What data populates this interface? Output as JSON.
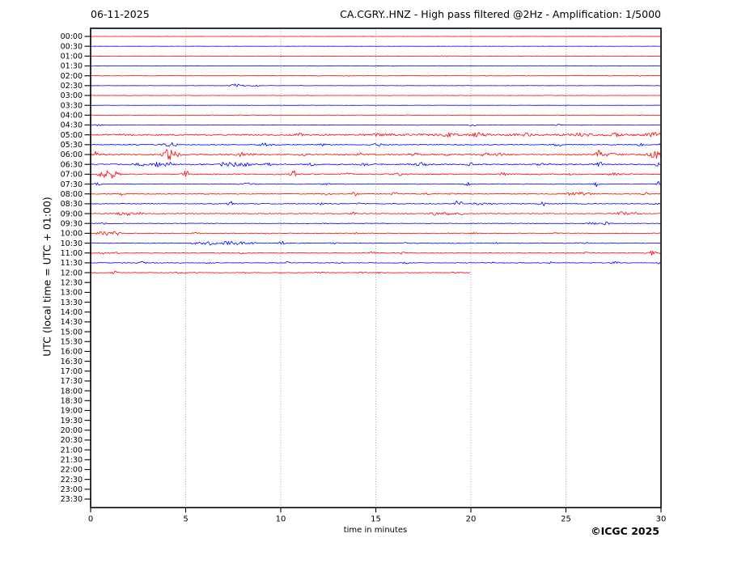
{
  "header": {
    "date": "06-11-2025",
    "title": "CA.CGRY..HNZ - High pass filtered @2Hz - Amplification: 1/5000"
  },
  "footer": {
    "copyright": "©ICGC 2025"
  },
  "chart_data": {
    "type": "line",
    "subtype": "helicorder-day-plot",
    "title": "CA.CGRY..HNZ - High pass filtered @2Hz - Amplification: 1/5000",
    "date": "06-11-2025",
    "xlabel": "time in minutes",
    "ylabel": "UTC (local time = UTC + 01:00)",
    "xlim": [
      0,
      30
    ],
    "x_ticks": [
      0,
      5,
      10,
      15,
      20,
      25,
      30
    ],
    "grid_minutes": [
      5,
      10,
      15,
      20,
      25
    ],
    "grid_on": true,
    "colors": {
      "red": "#ff0000",
      "blue": "#0000ff",
      "grid": "#999999",
      "frame": "#000000"
    },
    "rows": [
      {
        "utc": "00:00",
        "color": "red",
        "extent_min": 30,
        "noise": 0.12,
        "events": []
      },
      {
        "utc": "00:30",
        "color": "blue",
        "extent_min": 30,
        "noise": 0.12,
        "events": []
      },
      {
        "utc": "01:00",
        "color": "red",
        "extent_min": 30,
        "noise": 0.15,
        "events": [
          {
            "t": 18.6,
            "amp": 0.8,
            "w": 0.25
          },
          {
            "t": 19.2,
            "amp": 0.5,
            "w": 0.15
          }
        ]
      },
      {
        "utc": "01:30",
        "color": "blue",
        "extent_min": 30,
        "noise": 0.3,
        "events": []
      },
      {
        "utc": "02:00",
        "color": "red",
        "extent_min": 30,
        "noise": 0.25,
        "events": [
          {
            "t": 13.5,
            "amp": 0.4,
            "w": 0.2
          },
          {
            "t": 21.0,
            "amp": 0.5,
            "w": 0.2
          },
          {
            "t": 29.0,
            "amp": 0.4,
            "w": 0.2
          }
        ]
      },
      {
        "utc": "02:30",
        "color": "blue",
        "extent_min": 30,
        "noise": 0.2,
        "events": [
          {
            "t": 7.7,
            "amp": 2.2,
            "w": 0.35
          },
          {
            "t": 8.7,
            "amp": 2.0,
            "w": 0.18
          }
        ]
      },
      {
        "utc": "03:00",
        "color": "red",
        "extent_min": 30,
        "noise": 0.2,
        "events": []
      },
      {
        "utc": "03:30",
        "color": "blue",
        "extent_min": 30,
        "noise": 0.15,
        "events": []
      },
      {
        "utc": "04:00",
        "color": "red",
        "extent_min": 30,
        "noise": 0.35,
        "events": []
      },
      {
        "utc": "04:30",
        "color": "blue",
        "extent_min": 30,
        "noise": 0.3,
        "events": [
          {
            "t": 0.45,
            "amp": 2.5,
            "w": 0.12
          },
          {
            "t": 20.1,
            "amp": 1.2,
            "w": 0.15
          },
          {
            "t": 24.6,
            "amp": 0.8,
            "w": 0.15
          }
        ]
      },
      {
        "utc": "05:00",
        "color": "red",
        "extent_min": 30,
        "noise": 0.8,
        "segments": [
          {
            "t0": 14,
            "t1": 30,
            "amp": 0.5
          }
        ],
        "events": [
          {
            "t": 1.5,
            "amp": 1.0,
            "w": 0.3
          },
          {
            "t": 10.9,
            "amp": 1.8,
            "w": 0.3
          },
          {
            "t": 15.3,
            "amp": 1.2,
            "w": 0.3
          },
          {
            "t": 18.7,
            "amp": 1.8,
            "w": 0.4
          },
          {
            "t": 20.4,
            "amp": 2.2,
            "w": 0.3
          },
          {
            "t": 23.0,
            "amp": 1.2,
            "w": 0.3
          },
          {
            "t": 25.8,
            "amp": 1.5,
            "w": 0.4
          },
          {
            "t": 27.5,
            "amp": 1.6,
            "w": 0.3
          },
          {
            "t": 29.6,
            "amp": 2.2,
            "w": 0.3
          }
        ]
      },
      {
        "utc": "05:30",
        "color": "blue",
        "extent_min": 30,
        "noise": 0.5,
        "events": [
          {
            "t": 4.05,
            "amp": 2.8,
            "w": 0.25
          },
          {
            "t": 4.4,
            "amp": 1.8,
            "w": 0.15
          },
          {
            "t": 9.2,
            "amp": 2.2,
            "w": 0.3
          },
          {
            "t": 12.2,
            "amp": 1.2,
            "w": 0.2
          },
          {
            "t": 15.1,
            "amp": 1.6,
            "w": 0.25
          },
          {
            "t": 24.6,
            "amp": 1.6,
            "w": 0.25
          },
          {
            "t": 28.9,
            "amp": 1.4,
            "w": 0.2
          },
          {
            "t": 30.0,
            "amp": 1.2,
            "w": 0.15
          }
        ]
      },
      {
        "utc": "06:00",
        "color": "red",
        "extent_min": 30,
        "noise": 0.7,
        "events": [
          {
            "t": 0.25,
            "amp": 3.5,
            "w": 0.12
          },
          {
            "t": 4.1,
            "amp": 6.5,
            "w": 0.3
          },
          {
            "t": 4.6,
            "amp": 2.0,
            "w": 0.2
          },
          {
            "t": 7.9,
            "amp": 2.2,
            "w": 0.25
          },
          {
            "t": 8.4,
            "amp": 1.6,
            "w": 0.2
          },
          {
            "t": 11.2,
            "amp": 1.4,
            "w": 0.2
          },
          {
            "t": 14.2,
            "amp": 1.5,
            "w": 0.2
          },
          {
            "t": 17.1,
            "amp": 1.8,
            "w": 0.25
          },
          {
            "t": 18.8,
            "amp": 1.5,
            "w": 0.2
          },
          {
            "t": 20.7,
            "amp": 1.8,
            "w": 0.3
          },
          {
            "t": 21.6,
            "amp": 1.6,
            "w": 0.3
          },
          {
            "t": 26.8,
            "amp": 5.5,
            "w": 0.25
          },
          {
            "t": 27.3,
            "amp": 2.0,
            "w": 0.5
          },
          {
            "t": 29.7,
            "amp": 4.5,
            "w": 0.4
          }
        ]
      },
      {
        "utc": "06:30",
        "color": "blue",
        "extent_min": 30,
        "noise": 0.7,
        "events": [
          {
            "t": 2.6,
            "amp": 1.8,
            "w": 0.3
          },
          {
            "t": 3.5,
            "amp": 2.2,
            "w": 0.3
          },
          {
            "t": 4.05,
            "amp": 3.2,
            "w": 0.25
          },
          {
            "t": 7.1,
            "amp": 2.6,
            "w": 0.3
          },
          {
            "t": 7.7,
            "amp": 2.4,
            "w": 0.25
          },
          {
            "t": 8.2,
            "amp": 2.2,
            "w": 0.2
          },
          {
            "t": 9.3,
            "amp": 1.6,
            "w": 0.2
          },
          {
            "t": 11.6,
            "amp": 1.5,
            "w": 0.2
          },
          {
            "t": 14.4,
            "amp": 1.4,
            "w": 0.2
          },
          {
            "t": 17.4,
            "amp": 2.4,
            "w": 0.25
          },
          {
            "t": 20.0,
            "amp": 1.6,
            "w": 0.2
          },
          {
            "t": 23.6,
            "amp": 1.6,
            "w": 0.2
          },
          {
            "t": 26.7,
            "amp": 3.8,
            "w": 0.2
          },
          {
            "t": 29.9,
            "amp": 2.2,
            "w": 0.2
          }
        ]
      },
      {
        "utc": "07:00",
        "color": "red",
        "extent_min": 30,
        "noise": 0.6,
        "events": [
          {
            "t": 0.65,
            "amp": 5.0,
            "w": 0.25
          },
          {
            "t": 1.15,
            "amp": 4.5,
            "w": 0.3
          },
          {
            "t": 5.0,
            "amp": 4.8,
            "w": 0.18
          },
          {
            "t": 10.7,
            "amp": 4.2,
            "w": 0.2
          },
          {
            "t": 13.5,
            "amp": 1.4,
            "w": 0.2
          },
          {
            "t": 16.2,
            "amp": 1.5,
            "w": 0.2
          },
          {
            "t": 21.7,
            "amp": 2.8,
            "w": 0.15
          },
          {
            "t": 25.2,
            "amp": 1.2,
            "w": 0.2
          },
          {
            "t": 27.6,
            "amp": 1.4,
            "w": 0.3
          }
        ]
      },
      {
        "utc": "07:30",
        "color": "blue",
        "extent_min": 30,
        "noise": 0.4,
        "events": [
          {
            "t": 0.35,
            "amp": 2.2,
            "w": 0.15
          },
          {
            "t": 8.3,
            "amp": 1.2,
            "w": 0.3
          },
          {
            "t": 12.4,
            "amp": 1.1,
            "w": 0.2
          },
          {
            "t": 19.8,
            "amp": 2.2,
            "w": 0.15
          },
          {
            "t": 26.6,
            "amp": 3.2,
            "w": 0.15
          },
          {
            "t": 29.9,
            "amp": 3.0,
            "w": 0.15
          }
        ]
      },
      {
        "utc": "08:00",
        "color": "red",
        "extent_min": 30,
        "noise": 0.45,
        "events": [
          {
            "t": 1.6,
            "amp": 2.2,
            "w": 0.15
          },
          {
            "t": 6.0,
            "amp": 1.0,
            "w": 0.3
          },
          {
            "t": 12.4,
            "amp": 1.2,
            "w": 0.2
          },
          {
            "t": 13.9,
            "amp": 2.6,
            "w": 0.18
          },
          {
            "t": 16.0,
            "amp": 2.0,
            "w": 0.15
          },
          {
            "t": 17.6,
            "amp": 1.6,
            "w": 0.15
          },
          {
            "t": 19.0,
            "amp": 1.4,
            "w": 0.15
          },
          {
            "t": 25.4,
            "amp": 1.6,
            "w": 0.5
          },
          {
            "t": 26.0,
            "amp": 1.5,
            "w": 0.3
          },
          {
            "t": 29.2,
            "amp": 1.8,
            "w": 0.2
          }
        ]
      },
      {
        "utc": "08:30",
        "color": "blue",
        "extent_min": 30,
        "noise": 0.4,
        "events": [
          {
            "t": 7.35,
            "amp": 3.2,
            "w": 0.15
          },
          {
            "t": 12.1,
            "amp": 1.2,
            "w": 0.2
          },
          {
            "t": 14.2,
            "amp": 1.0,
            "w": 0.2
          },
          {
            "t": 19.35,
            "amp": 4.5,
            "w": 0.18
          },
          {
            "t": 20.6,
            "amp": 1.6,
            "w": 0.5
          },
          {
            "t": 23.8,
            "amp": 2.6,
            "w": 0.15
          },
          {
            "t": 29.7,
            "amp": 1.4,
            "w": 0.2
          }
        ]
      },
      {
        "utc": "09:00",
        "color": "red",
        "extent_min": 30,
        "noise": 0.45,
        "events": [
          {
            "t": 1.6,
            "amp": 1.6,
            "w": 0.3
          },
          {
            "t": 2.1,
            "amp": 1.8,
            "w": 0.35
          },
          {
            "t": 2.6,
            "amp": 1.4,
            "w": 0.2
          },
          {
            "t": 13.8,
            "amp": 1.8,
            "w": 0.18
          },
          {
            "t": 18.1,
            "amp": 1.8,
            "w": 0.3
          },
          {
            "t": 18.8,
            "amp": 1.8,
            "w": 0.3
          },
          {
            "t": 19.4,
            "amp": 1.5,
            "w": 0.2
          },
          {
            "t": 27.9,
            "amp": 2.2,
            "w": 0.3
          },
          {
            "t": 28.5,
            "amp": 2.0,
            "w": 0.25
          },
          {
            "t": 29.9,
            "amp": 1.4,
            "w": 0.15
          }
        ]
      },
      {
        "utc": "09:30",
        "color": "blue",
        "extent_min": 30,
        "noise": 0.35,
        "events": [
          {
            "t": 0.7,
            "amp": 2.6,
            "w": 0.12
          },
          {
            "t": 12.3,
            "amp": 0.9,
            "w": 0.2
          },
          {
            "t": 26.4,
            "amp": 2.4,
            "w": 0.18
          },
          {
            "t": 27.1,
            "amp": 1.6,
            "w": 0.25
          }
        ]
      },
      {
        "utc": "10:00",
        "color": "red",
        "extent_min": 30,
        "noise": 0.4,
        "events": [
          {
            "t": 0.55,
            "amp": 3.5,
            "w": 0.2
          },
          {
            "t": 0.95,
            "amp": 4.0,
            "w": 0.25
          },
          {
            "t": 1.35,
            "amp": 2.0,
            "w": 0.2
          },
          {
            "t": 5.6,
            "amp": 0.8,
            "w": 0.3
          },
          {
            "t": 9.2,
            "amp": 0.7,
            "w": 0.2
          },
          {
            "t": 13.9,
            "amp": 0.8,
            "w": 0.2
          },
          {
            "t": 20.1,
            "amp": 0.7,
            "w": 0.2
          },
          {
            "t": 24.5,
            "amp": 0.7,
            "w": 0.2
          }
        ]
      },
      {
        "utc": "10:30",
        "color": "blue",
        "extent_min": 30,
        "noise": 0.4,
        "segments": [
          {
            "t0": 5.3,
            "t1": 8.7,
            "amp": 0.8
          }
        ],
        "events": [
          {
            "t": 6.3,
            "amp": 1.4,
            "w": 0.3
          },
          {
            "t": 7.2,
            "amp": 1.6,
            "w": 0.3
          },
          {
            "t": 7.9,
            "amp": 1.5,
            "w": 0.3
          },
          {
            "t": 10.05,
            "amp": 2.6,
            "w": 0.15
          },
          {
            "t": 12.8,
            "amp": 1.2,
            "w": 0.15
          },
          {
            "t": 16.6,
            "amp": 0.9,
            "w": 0.2
          },
          {
            "t": 21.3,
            "amp": 0.8,
            "w": 0.2
          },
          {
            "t": 26.0,
            "amp": 0.9,
            "w": 0.2
          }
        ]
      },
      {
        "utc": "11:00",
        "color": "red",
        "extent_min": 30,
        "noise": 0.4,
        "events": [
          {
            "t": 0.6,
            "amp": 1.2,
            "w": 0.2
          },
          {
            "t": 1.3,
            "amp": 1.1,
            "w": 0.2
          },
          {
            "t": 8.0,
            "amp": 0.8,
            "w": 0.2
          },
          {
            "t": 14.8,
            "amp": 1.6,
            "w": 0.15
          },
          {
            "t": 16.4,
            "amp": 1.5,
            "w": 0.15
          },
          {
            "t": 26.1,
            "amp": 1.4,
            "w": 0.2
          },
          {
            "t": 29.6,
            "amp": 2.6,
            "w": 0.3
          }
        ]
      },
      {
        "utc": "11:30",
        "color": "blue",
        "extent_min": 30,
        "noise": 0.35,
        "events": [
          {
            "t": 2.7,
            "amp": 1.4,
            "w": 0.2
          },
          {
            "t": 6.2,
            "amp": 1.0,
            "w": 0.2
          },
          {
            "t": 10.3,
            "amp": 1.6,
            "w": 0.15
          },
          {
            "t": 13.2,
            "amp": 1.0,
            "w": 0.2
          },
          {
            "t": 16.6,
            "amp": 1.2,
            "w": 0.15
          },
          {
            "t": 21.2,
            "amp": 1.0,
            "w": 0.15
          },
          {
            "t": 24.2,
            "amp": 1.0,
            "w": 0.15
          },
          {
            "t": 27.6,
            "amp": 1.3,
            "w": 0.2
          },
          {
            "t": 29.9,
            "amp": 1.2,
            "w": 0.15
          }
        ]
      },
      {
        "utc": "12:00",
        "color": "red",
        "extent_min": 20,
        "noise": 0.35,
        "events": [
          {
            "t": 1.25,
            "amp": 2.4,
            "w": 0.15
          },
          {
            "t": 4.7,
            "amp": 0.9,
            "w": 0.3
          },
          {
            "t": 5.5,
            "amp": 0.8,
            "w": 0.3
          },
          {
            "t": 8.2,
            "amp": 0.7,
            "w": 0.2
          },
          {
            "t": 12.1,
            "amp": 0.8,
            "w": 0.2
          },
          {
            "t": 14.3,
            "amp": 0.9,
            "w": 0.25
          },
          {
            "t": 15.2,
            "amp": 0.8,
            "w": 0.2
          },
          {
            "t": 19.2,
            "amp": 0.8,
            "w": 0.2
          }
        ]
      },
      {
        "utc": "12:30",
        "color": "blue",
        "extent_min": 0
      },
      {
        "utc": "13:00",
        "color": "red",
        "extent_min": 0
      },
      {
        "utc": "13:30",
        "color": "blue",
        "extent_min": 0
      },
      {
        "utc": "14:00",
        "color": "red",
        "extent_min": 0
      },
      {
        "utc": "14:30",
        "color": "blue",
        "extent_min": 0
      },
      {
        "utc": "15:00",
        "color": "red",
        "extent_min": 0
      },
      {
        "utc": "15:30",
        "color": "blue",
        "extent_min": 0
      },
      {
        "utc": "16:00",
        "color": "red",
        "extent_min": 0
      },
      {
        "utc": "16:30",
        "color": "blue",
        "extent_min": 0
      },
      {
        "utc": "17:00",
        "color": "red",
        "extent_min": 0
      },
      {
        "utc": "17:30",
        "color": "blue",
        "extent_min": 0
      },
      {
        "utc": "18:00",
        "color": "red",
        "extent_min": 0
      },
      {
        "utc": "18:30",
        "color": "blue",
        "extent_min": 0
      },
      {
        "utc": "19:00",
        "color": "red",
        "extent_min": 0
      },
      {
        "utc": "19:30",
        "color": "blue",
        "extent_min": 0
      },
      {
        "utc": "20:00",
        "color": "red",
        "extent_min": 0
      },
      {
        "utc": "20:30",
        "color": "blue",
        "extent_min": 0
      },
      {
        "utc": "21:00",
        "color": "red",
        "extent_min": 0
      },
      {
        "utc": "21:30",
        "color": "blue",
        "extent_min": 0
      },
      {
        "utc": "22:00",
        "color": "red",
        "extent_min": 0
      },
      {
        "utc": "22:30",
        "color": "blue",
        "extent_min": 0
      },
      {
        "utc": "23:00",
        "color": "red",
        "extent_min": 0
      },
      {
        "utc": "23:30",
        "color": "blue",
        "extent_min": 0
      }
    ]
  }
}
